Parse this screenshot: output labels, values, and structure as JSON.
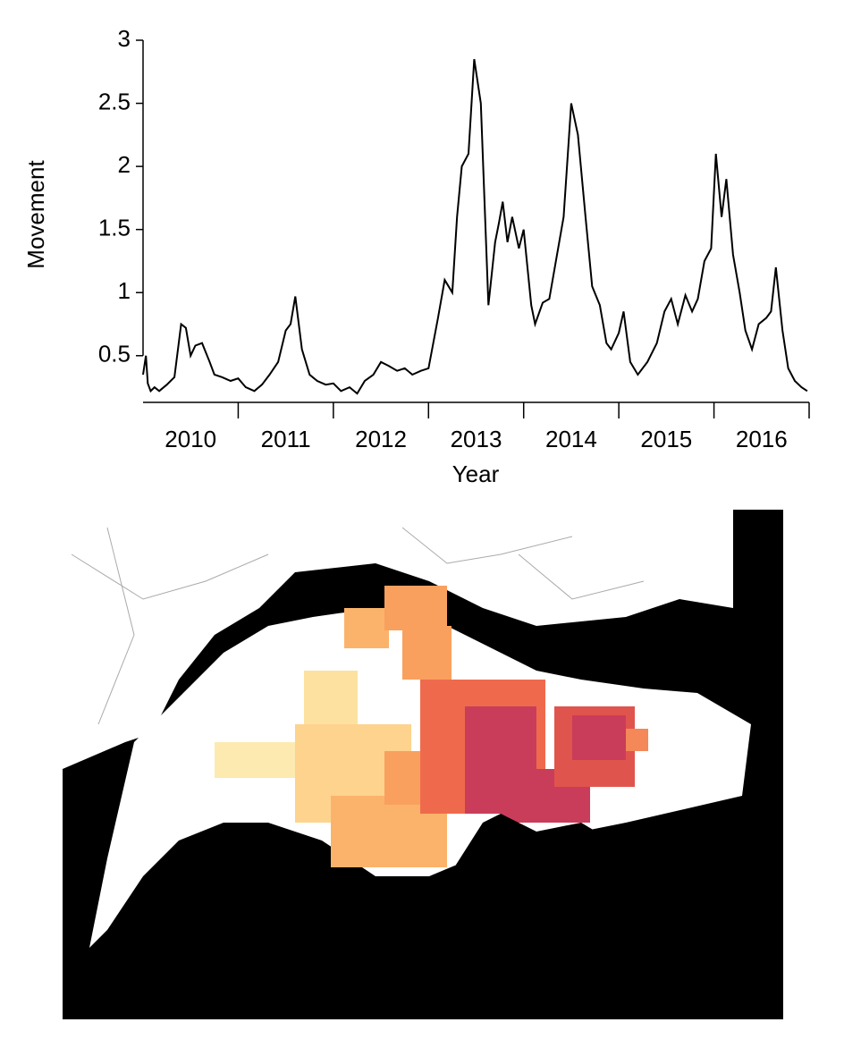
{
  "chart_data": {
    "type": "line",
    "x_label": "Year",
    "y_label": "Movement",
    "xlim": [
      2010,
      2017
    ],
    "ylim": [
      0.13,
      3
    ],
    "xticks": [
      {
        "value": 2010.5,
        "label": "2010"
      },
      {
        "value": 2011.5,
        "label": "2011"
      },
      {
        "value": 2012.5,
        "label": "2012"
      },
      {
        "value": 2013.5,
        "label": "2013"
      },
      {
        "value": 2014.5,
        "label": "2014"
      },
      {
        "value": 2015.5,
        "label": "2015"
      },
      {
        "value": 2016.5,
        "label": "2016"
      }
    ],
    "x_breaks": [
      2011,
      2012,
      2013,
      2014,
      2015,
      2016,
      2017
    ],
    "yticks": [
      {
        "value": 0.5,
        "label": "0.5"
      },
      1,
      1.5,
      2,
      2.5,
      3
    ],
    "series": [
      {
        "color": "#000000",
        "x": [
          2010.0,
          2010.03,
          2010.05,
          2010.08,
          2010.12,
          2010.17,
          2010.25,
          2010.33,
          2010.4,
          2010.45,
          2010.5,
          2010.55,
          2010.62,
          2010.7,
          2010.75,
          2010.83,
          2010.92,
          2011.0,
          2011.08,
          2011.17,
          2011.25,
          2011.33,
          2011.42,
          2011.5,
          2011.55,
          2011.6,
          2011.67,
          2011.75,
          2011.83,
          2011.92,
          2012.0,
          2012.08,
          2012.17,
          2012.25,
          2012.33,
          2012.42,
          2012.5,
          2012.58,
          2012.67,
          2012.75,
          2012.83,
          2012.92,
          2013.0,
          2013.1,
          2013.17,
          2013.25,
          2013.3,
          2013.35,
          2013.42,
          2013.48,
          2013.55,
          2013.6,
          2013.63,
          2013.7,
          2013.74,
          2013.78,
          2013.83,
          2013.88,
          2013.95,
          2014.0,
          2014.08,
          2014.12,
          2014.2,
          2014.27,
          2014.35,
          2014.42,
          2014.5,
          2014.57,
          2014.65,
          2014.72,
          2014.8,
          2014.87,
          2014.92,
          2015.0,
          2015.05,
          2015.12,
          2015.2,
          2015.3,
          2015.4,
          2015.48,
          2015.55,
          2015.62,
          2015.7,
          2015.77,
          2015.83,
          2015.9,
          2015.97,
          2016.02,
          2016.08,
          2016.13,
          2016.2,
          2016.27,
          2016.33,
          2016.4,
          2016.47,
          2016.55,
          2016.6,
          2016.65,
          2016.72,
          2016.78,
          2016.85,
          2016.92,
          2016.98
        ],
        "values": [
          0.35,
          0.5,
          0.28,
          0.22,
          0.25,
          0.22,
          0.27,
          0.33,
          0.75,
          0.72,
          0.5,
          0.58,
          0.6,
          0.45,
          0.35,
          0.33,
          0.3,
          0.32,
          0.25,
          0.22,
          0.27,
          0.35,
          0.45,
          0.7,
          0.75,
          0.97,
          0.55,
          0.35,
          0.3,
          0.27,
          0.28,
          0.22,
          0.25,
          0.2,
          0.3,
          0.35,
          0.45,
          0.42,
          0.38,
          0.4,
          0.35,
          0.38,
          0.4,
          0.8,
          1.1,
          1.0,
          1.6,
          2.0,
          2.1,
          2.85,
          2.5,
          1.5,
          0.9,
          1.4,
          1.55,
          1.72,
          1.4,
          1.6,
          1.35,
          1.5,
          0.9,
          0.75,
          0.92,
          0.95,
          1.3,
          1.6,
          2.5,
          2.25,
          1.6,
          1.05,
          0.9,
          0.6,
          0.55,
          0.68,
          0.85,
          0.45,
          0.35,
          0.45,
          0.6,
          0.85,
          0.95,
          0.75,
          0.98,
          0.85,
          0.95,
          1.25,
          1.35,
          2.1,
          1.6,
          1.9,
          1.3,
          1.0,
          0.7,
          0.55,
          0.75,
          0.8,
          0.85,
          1.2,
          0.7,
          0.4,
          0.3,
          0.25,
          0.22
        ]
      }
    ]
  }
}
